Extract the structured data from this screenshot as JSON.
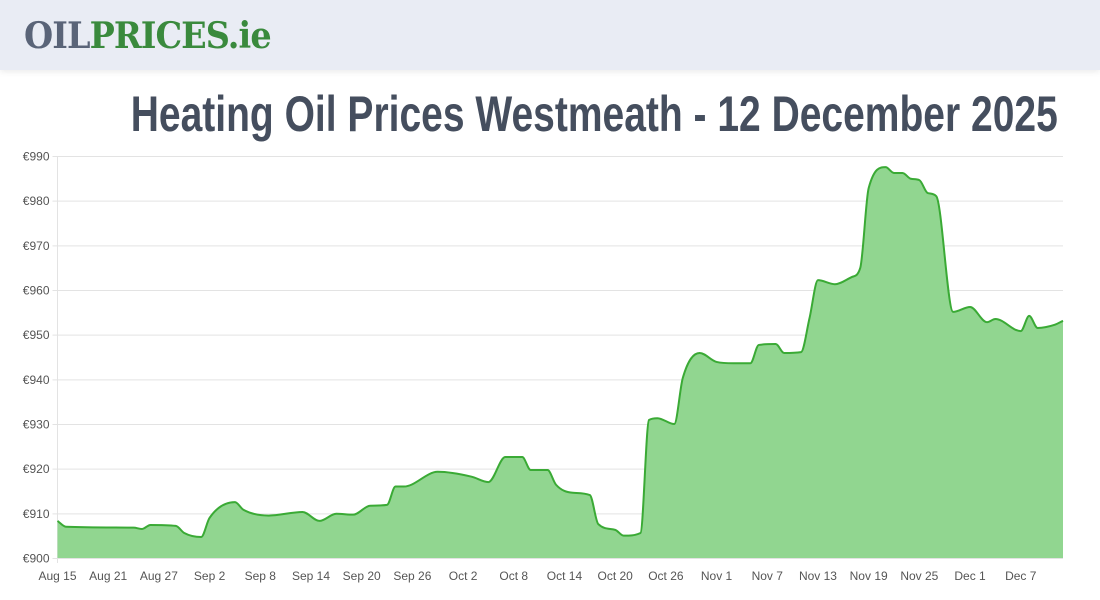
{
  "header": {
    "logo_part1": "OIL",
    "logo_part2": "PRICES.ie"
  },
  "page_title": "Heating Oil Prices Westmeath - 12 December 2025",
  "colors": {
    "line": "#3aaa35",
    "fill": "#8fd58e",
    "logo_gray": "#5a6478",
    "logo_green": "#3a8a3d",
    "title": "#454e5e"
  },
  "chart_data": {
    "type": "area",
    "title": "",
    "xlabel": "",
    "ylabel": "",
    "ylim": [
      900,
      990
    ],
    "grid": true,
    "y_ticks": [
      "€900",
      "€910",
      "€920",
      "€930",
      "€940",
      "€950",
      "€960",
      "€970",
      "€980",
      "€990"
    ],
    "x_ticks": [
      "Aug 15",
      "Aug 21",
      "Aug 27",
      "Sep 2",
      "Sep 8",
      "Sep 14",
      "Sep 20",
      "Sep 26",
      "Oct 2",
      "Oct 8",
      "Oct 14",
      "Oct 20",
      "Oct 26",
      "Nov 1",
      "Nov 7",
      "Nov 13",
      "Nov 19",
      "Nov 25",
      "Dec 1",
      "Dec 7"
    ],
    "x_tick_dates": [
      "2025-08-15",
      "2025-08-21",
      "2025-08-27",
      "2025-09-02",
      "2025-09-08",
      "2025-09-14",
      "2025-09-20",
      "2025-09-26",
      "2025-10-02",
      "2025-10-08",
      "2025-10-14",
      "2025-10-20",
      "2025-10-26",
      "2025-11-01",
      "2025-11-07",
      "2025-11-13",
      "2025-11-19",
      "2025-11-25",
      "2025-12-01",
      "2025-12-07"
    ],
    "x": [
      "2025-08-15",
      "2025-08-16",
      "2025-08-24",
      "2025-08-25",
      "2025-08-26",
      "2025-08-29",
      "2025-08-30",
      "2025-09-01",
      "2025-09-02",
      "2025-09-05",
      "2025-09-06",
      "2025-09-09",
      "2025-09-13",
      "2025-09-15",
      "2025-09-17",
      "2025-09-19",
      "2025-09-21",
      "2025-09-23",
      "2025-09-24",
      "2025-09-25",
      "2025-09-29",
      "2025-10-03",
      "2025-10-05",
      "2025-10-07",
      "2025-10-09",
      "2025-10-10",
      "2025-10-12",
      "2025-10-13",
      "2025-10-15",
      "2025-10-17",
      "2025-10-18",
      "2025-10-20",
      "2025-10-21",
      "2025-10-23",
      "2025-10-24",
      "2025-10-25",
      "2025-10-27",
      "2025-10-28",
      "2025-10-30",
      "2025-11-01",
      "2025-11-03",
      "2025-11-05",
      "2025-11-06",
      "2025-11-08",
      "2025-11-09",
      "2025-11-11",
      "2025-11-12",
      "2025-11-13",
      "2025-11-15",
      "2025-11-17",
      "2025-11-18",
      "2025-11-19",
      "2025-11-21",
      "2025-11-22",
      "2025-11-23",
      "2025-11-24",
      "2025-11-25",
      "2025-11-26",
      "2025-11-27",
      "2025-11-29",
      "2025-12-01",
      "2025-12-03",
      "2025-12-04",
      "2025-12-07",
      "2025-12-08",
      "2025-12-09",
      "2025-12-11",
      "2025-12-12"
    ],
    "y": [
      908.3,
      907.0,
      906.8,
      906.5,
      907.4,
      907.2,
      905.6,
      904.7,
      909.0,
      912.5,
      910.8,
      909.5,
      910.3,
      908.3,
      909.9,
      909.7,
      911.7,
      911.9,
      916.0,
      916.0,
      919.3,
      918.2,
      917.0,
      922.6,
      922.6,
      919.7,
      919.7,
      916.4,
      914.6,
      914.1,
      907.6,
      906.3,
      905.0,
      905.6,
      930.9,
      931.3,
      930.0,
      940.3,
      945.9,
      943.9,
      943.6,
      943.6,
      947.7,
      947.9,
      945.9,
      946.1,
      953.7,
      962.2,
      961.3,
      962.9,
      964.9,
      982.8,
      987.5,
      986.2,
      986.2,
      984.9,
      984.6,
      981.7,
      981.0,
      955.1,
      956.2,
      952.8,
      953.5,
      950.8,
      954.2,
      951.5,
      952.2,
      953.1
    ]
  }
}
